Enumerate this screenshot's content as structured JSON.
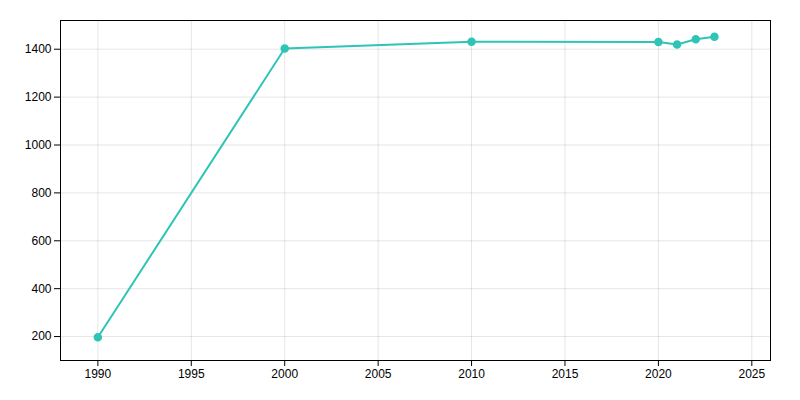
{
  "chart_data": {
    "type": "line",
    "x": [
      1990,
      2000,
      2010,
      2020,
      2021,
      2022,
      2023
    ],
    "values": [
      197,
      1403,
      1431,
      1430,
      1420,
      1442,
      1452
    ],
    "color": "#2ec4b6",
    "marker": "circle",
    "xlim": [
      1988,
      2026
    ],
    "ylim": [
      100,
      1520
    ],
    "xticks": [
      1990,
      1995,
      2000,
      2005,
      2010,
      2015,
      2020,
      2025
    ],
    "yticks": [
      200,
      400,
      600,
      800,
      1000,
      1200,
      1400
    ],
    "grid": true
  }
}
